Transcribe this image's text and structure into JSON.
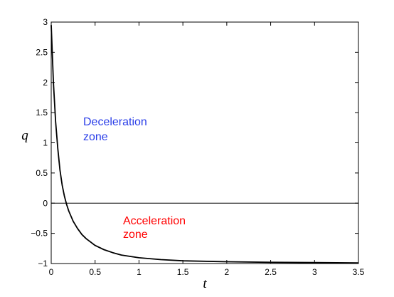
{
  "chart_data": {
    "type": "line",
    "title": "",
    "xlabel": "t",
    "ylabel": "q",
    "xlim": [
      0,
      3.5
    ],
    "ylim": [
      -1,
      3
    ],
    "grid": false,
    "xticks": [
      0,
      0.5,
      1,
      1.5,
      2,
      2.5,
      3,
      3.5
    ],
    "xtick_labels": [
      "0",
      "0.5",
      "1",
      "1.5",
      "2",
      "2.5",
      "3",
      "3.5"
    ],
    "yticks": [
      -1,
      -0.5,
      0,
      0.5,
      1,
      1.5,
      2,
      2.5,
      3
    ],
    "ytick_labels": [
      "−1",
      "−0.5",
      "0",
      "0.5",
      "1",
      "1.5",
      "2",
      "2.5",
      "3"
    ],
    "reference_line": {
      "y": 0,
      "color": "#000000"
    },
    "series": [
      {
        "color": "#000000",
        "x": [
          0,
          0.025,
          0.05,
          0.075,
          0.1,
          0.125,
          0.15,
          0.175,
          0.2,
          0.25,
          0.3,
          0.35,
          0.4,
          0.5,
          0.6,
          0.7,
          0.8,
          1.0,
          1.25,
          1.5,
          2.0,
          2.5,
          3.0,
          3.5
        ],
        "y": [
          2.95,
          2.0,
          1.35,
          0.9,
          0.55,
          0.3,
          0.12,
          -0.02,
          -0.13,
          -0.3,
          -0.42,
          -0.52,
          -0.59,
          -0.7,
          -0.77,
          -0.82,
          -0.86,
          -0.905,
          -0.935,
          -0.955,
          -0.97,
          -0.98,
          -0.985,
          -0.99
        ]
      }
    ],
    "annotations": [
      {
        "lines": [
          "Deceleration",
          "zone"
        ],
        "color": "#2a3ee8"
      },
      {
        "lines": [
          "Acceleration",
          "zone"
        ],
        "color": "#ff0000"
      }
    ]
  }
}
